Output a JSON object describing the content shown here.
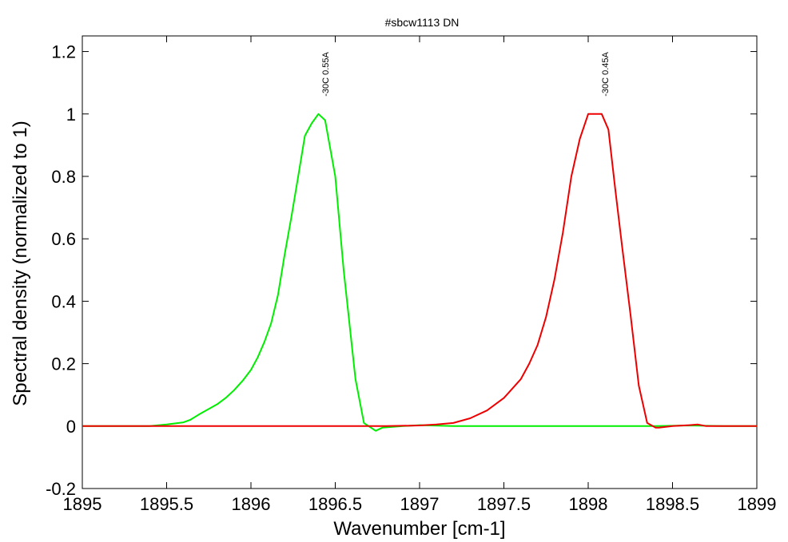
{
  "chart_data": {
    "type": "line",
    "title": "#sbcw1113 DN",
    "xlabel": "Wavenumber [cm-1]",
    "ylabel": "Spectral density (normalized to 1)",
    "xlim": [
      1895,
      1899
    ],
    "ylim": [
      -0.2,
      1.25
    ],
    "xticks": [
      "1895",
      "1895.5",
      "1896",
      "1896.5",
      "1897",
      "1897.5",
      "1898",
      "1898.5",
      "1899"
    ],
    "yticks": [
      "-0.2",
      "0",
      "0.2",
      "0.4",
      "0.6",
      "0.8",
      "1",
      "1.2"
    ],
    "grid": false,
    "series": [
      {
        "color": "#00ee00",
        "x": [
          1895.0,
          1895.2,
          1895.4,
          1895.5,
          1895.6,
          1895.64,
          1895.7,
          1895.8,
          1895.85,
          1895.9,
          1895.95,
          1896.0,
          1896.04,
          1896.08,
          1896.12,
          1896.16,
          1896.2,
          1896.24,
          1896.28,
          1896.32,
          1896.36,
          1896.4,
          1896.44,
          1896.5,
          1896.55,
          1896.62,
          1896.67,
          1896.74,
          1896.78,
          1896.9,
          1897.0,
          1897.2,
          1897.4,
          1897.6,
          1897.8,
          1898.0,
          1898.2,
          1898.4,
          1898.6,
          1898.8,
          1899.0
        ],
        "y": [
          0.0,
          0.0,
          0.0,
          0.005,
          0.012,
          0.02,
          0.04,
          0.07,
          0.09,
          0.115,
          0.145,
          0.18,
          0.22,
          0.27,
          0.33,
          0.42,
          0.55,
          0.67,
          0.8,
          0.93,
          0.97,
          1.0,
          0.98,
          0.8,
          0.5,
          0.15,
          0.01,
          -0.015,
          -0.005,
          0.0,
          0.003,
          0.0,
          0.0,
          0.0,
          0.0,
          0.0,
          0.0,
          0.0,
          0.002,
          0.0,
          0.0
        ]
      },
      {
        "color": "#ee0000",
        "x": [
          1895.0,
          1895.4,
          1895.8,
          1896.2,
          1896.6,
          1896.8,
          1897.0,
          1897.1,
          1897.2,
          1897.3,
          1897.4,
          1897.5,
          1897.6,
          1897.65,
          1897.7,
          1897.75,
          1897.8,
          1897.85,
          1897.9,
          1897.95,
          1898.0,
          1898.04,
          1898.08,
          1898.12,
          1898.16,
          1898.2,
          1898.25,
          1898.3,
          1898.35,
          1898.4,
          1898.42,
          1898.5,
          1898.6,
          1898.65,
          1898.7,
          1898.8,
          1899.0
        ],
        "y": [
          0.0,
          0.0,
          0.0,
          0.0,
          0.0,
          0.0,
          0.002,
          0.005,
          0.01,
          0.025,
          0.05,
          0.09,
          0.15,
          0.2,
          0.26,
          0.35,
          0.47,
          0.62,
          0.8,
          0.92,
          1.0,
          1.0,
          1.0,
          0.95,
          0.76,
          0.58,
          0.36,
          0.13,
          0.01,
          -0.005,
          -0.005,
          0.0,
          0.003,
          0.005,
          0.0,
          0.0,
          0.0
        ]
      }
    ],
    "annotations": [
      {
        "text": "-30C 0.55A",
        "x": 1896.44,
        "y": 1.0,
        "color": "#00ee00"
      },
      {
        "text": "-30C 0.45A",
        "x": 1898.1,
        "y": 1.0,
        "color": "#ee0000"
      }
    ]
  }
}
